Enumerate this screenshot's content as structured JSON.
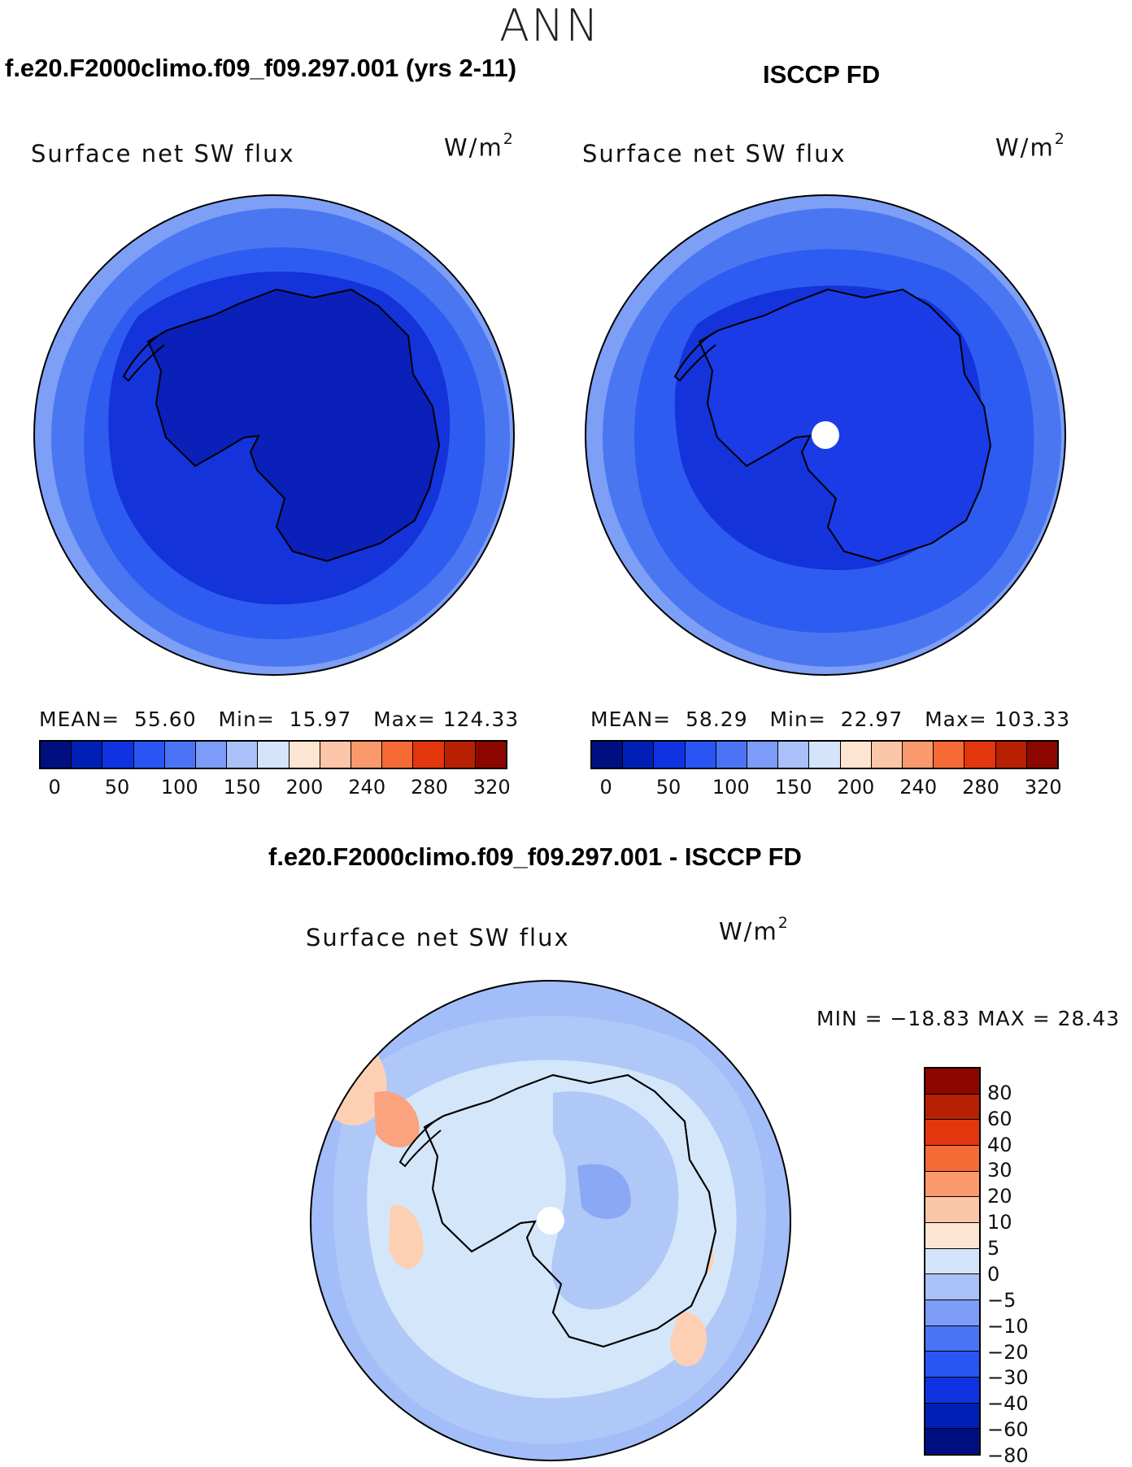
{
  "figure": {
    "title": "ANN"
  },
  "panels": [
    {
      "title": "f.e20.F2000climo.f09_f09.297.001 (yrs 2-11)",
      "variable": "Surface net SW flux",
      "units_base": "W/m",
      "units_exp": "2",
      "stats": {
        "mean_label": "MEAN=",
        "mean": "55.60",
        "min_label": "Min=",
        "min": "15.97",
        "max_label": "Max=",
        "max": "124.33"
      },
      "colorbar_ticks": [
        "0",
        "50",
        "100",
        "150",
        "200",
        "240",
        "280",
        "320"
      ],
      "colors": {
        "land": "#0a20b8",
        "ocean_inner": "#1433db",
        "ocean_mid": "#2e5cf0",
        "ocean_outer": "#4a76f2",
        "edge": "#7d9ff5"
      },
      "missing_pole": false
    },
    {
      "title": "ISCCP FD",
      "variable": "Surface net SW flux",
      "units_base": "W/m",
      "units_exp": "2",
      "stats": {
        "mean_label": "MEAN=",
        "mean": "58.29",
        "min_label": "Min=",
        "min": "22.97",
        "max_label": "Max=",
        "max": "103.33"
      },
      "colorbar_ticks": [
        "0",
        "50",
        "100",
        "150",
        "200",
        "240",
        "280",
        "320"
      ],
      "colors": {
        "land": "#1a3be6",
        "ocean_inner": "#1a3be6",
        "ocean_mid": "#2e5cf0",
        "ocean_outer": "#4a76f2",
        "edge": "#7d9ff5"
      },
      "missing_pole": true
    },
    {
      "title": "f.e20.F2000climo.f09_f09.297.001 - ISCCP FD",
      "variable": "Surface net SW flux",
      "units_base": "W/m",
      "units_exp": "2",
      "minmax": "MIN = −18.83 MAX =   28.43",
      "colorbar_ticks": [
        "80",
        "60",
        "40",
        "30",
        "20",
        "10",
        "5",
        "0",
        "−5",
        "−10",
        "−20",
        "−30",
        "−40",
        "−60",
        "−80"
      ],
      "colors": {
        "land": "#8aa8f5",
        "ocean_inner": "#d4e6fa",
        "ocean_mid": "#b0c8f8",
        "ocean_outer": "#a2bdf7",
        "warm1": "#fdd0b4",
        "warm2": "#fba27e",
        "warm3": "#f35a2a"
      },
      "missing_pole": true
    }
  ],
  "colorbars": {
    "sequential": [
      "#000f80",
      "#0020b5",
      "#0f33e0",
      "#2a55f5",
      "#4a74f5",
      "#7d9cf7",
      "#a9c1f8",
      "#d3e4fb",
      "#fde5d2",
      "#fcc6a8",
      "#fa9a6c",
      "#f66a36",
      "#e4360c",
      "#b82004",
      "#8c0700"
    ],
    "diverging": [
      "#8c0700",
      "#b82004",
      "#e4360c",
      "#f66a36",
      "#fa9a6c",
      "#fcc6a8",
      "#fde5d2",
      "#d3e4fb",
      "#a9c1f8",
      "#7d9cf7",
      "#4a74f5",
      "#2a55f5",
      "#0f33e0",
      "#0020b5",
      "#000f80"
    ]
  }
}
